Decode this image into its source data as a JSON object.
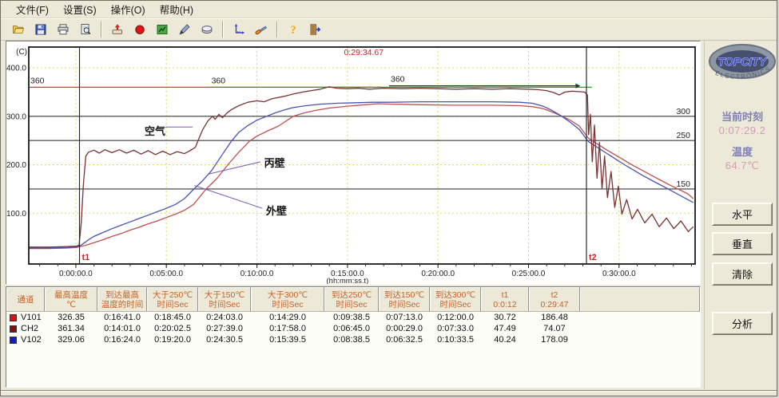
{
  "menu": {
    "items": [
      "文件(F)",
      "设置(S)",
      "操作(O)",
      "帮助(H)"
    ]
  },
  "toolbar": {
    "groups": [
      [
        "open-file-icon",
        "save-icon",
        "print-icon",
        "print-preview-icon"
      ],
      [
        "collect-data-icon",
        "record-icon",
        "chart-icon",
        "pen-icon",
        "eraser-icon"
      ],
      [
        "axis-icon",
        "tools-icon"
      ],
      [
        "help-icon",
        "exit-icon"
      ]
    ]
  },
  "chart_data": {
    "type": "line",
    "cursor_time_label": "0:29:34.67",
    "x_axis": {
      "sub_label": "(hh:mm:ss.t)",
      "tick_labels": [
        "0:00:00.0",
        "0:05:00.0",
        "0:10:00.0",
        "0:15:00.0",
        "0:20:00.0",
        "0:25:00.0",
        "0:30:00.0"
      ],
      "tick_minutes": [
        0,
        5,
        10,
        15,
        20,
        25,
        30
      ],
      "range_minutes": [
        -2.6,
        34.2
      ]
    },
    "y_axis": {
      "unit_label": "(C)",
      "tick_labels": [
        "400.0",
        "300.0",
        "200.0",
        "100.0"
      ],
      "tick_values": [
        400,
        300,
        200,
        100
      ],
      "range_c": [
        -5,
        443
      ]
    },
    "threshold_lines": [
      {
        "label": "150",
        "value": 150
      },
      {
        "label": "250",
        "value": 250
      },
      {
        "label": "300",
        "value": 300
      }
    ],
    "setpoint_lines": [
      {
        "label": "360",
        "value": 360,
        "color": "#e03838",
        "from_min": -2.6,
        "to_min": 16.9,
        "arrow": false
      },
      {
        "label": "360",
        "value": 360,
        "color": "#2f9e2f",
        "from_min": 7.4,
        "to_min": 28.5,
        "arrow": false
      },
      {
        "label": "360",
        "value": 363,
        "color": "#303030",
        "from_min": 17.3,
        "to_min": 27.6,
        "arrow": true
      }
    ],
    "markers": [
      {
        "label": "t1",
        "time_min": 0.2,
        "time_text": "0:0:12"
      },
      {
        "label": "t2",
        "time_min": 28.2,
        "time_text": "0:29:47"
      }
    ],
    "annotations": [
      {
        "text": "空气",
        "t": 3.8,
        "temp": 262,
        "line": [
          [
            4.95,
            278
          ],
          [
            6.45,
            278
          ]
        ]
      },
      {
        "text": "丙壁",
        "t": 10.4,
        "temp": 196,
        "line": [
          [
            10.2,
            206
          ],
          [
            7.35,
            181
          ]
        ]
      },
      {
        "text": "外壁",
        "t": 10.5,
        "temp": 97,
        "line": [
          [
            10.3,
            110
          ],
          [
            6.55,
            157
          ]
        ]
      }
    ],
    "series": [
      {
        "name": "外壁",
        "channel": "V101",
        "color": "#c05050",
        "points": [
          [
            -2.6,
            27
          ],
          [
            -1.5,
            27
          ],
          [
            -0.5,
            28
          ],
          [
            0,
            29
          ],
          [
            0.5,
            33
          ],
          [
            1,
            39
          ],
          [
            1.5,
            45
          ],
          [
            2,
            52
          ],
          [
            2.5,
            58
          ],
          [
            3,
            65
          ],
          [
            3.5,
            71
          ],
          [
            4,
            78
          ],
          [
            4.5,
            84
          ],
          [
            5,
            91
          ],
          [
            5.5,
            98
          ],
          [
            6,
            106
          ],
          [
            6.5,
            118
          ],
          [
            7.2,
            150
          ],
          [
            7.8,
            172
          ],
          [
            8.4,
            200
          ],
          [
            9,
            226
          ],
          [
            9.6,
            249
          ],
          [
            10,
            259
          ],
          [
            10.6,
            270
          ],
          [
            11.2,
            280
          ],
          [
            12,
            300
          ],
          [
            12.6,
            307
          ],
          [
            13.2,
            312
          ],
          [
            14,
            317
          ],
          [
            15,
            321
          ],
          [
            16,
            324
          ],
          [
            16.7,
            326
          ],
          [
            17.5,
            325
          ],
          [
            19,
            324
          ],
          [
            21,
            323
          ],
          [
            23,
            323
          ],
          [
            24.5,
            322
          ],
          [
            25.2,
            320
          ],
          [
            25.8,
            316
          ],
          [
            26.3,
            309
          ],
          [
            26.8,
            301
          ],
          [
            27.3,
            292
          ],
          [
            27.8,
            280
          ],
          [
            28.3,
            255
          ],
          [
            28.8,
            243
          ],
          [
            29.3,
            231
          ],
          [
            29.8,
            220
          ],
          [
            30.3,
            209
          ],
          [
            30.8,
            198
          ],
          [
            31.3,
            188
          ],
          [
            31.8,
            178
          ],
          [
            32.3,
            168
          ],
          [
            32.8,
            158
          ],
          [
            33.3,
            149
          ],
          [
            33.8,
            140
          ],
          [
            34.1,
            130
          ]
        ]
      },
      {
        "name": "丙壁",
        "channel": "V102",
        "color": "#4a52b4",
        "points": [
          [
            -2.6,
            28
          ],
          [
            -1.5,
            28
          ],
          [
            -0.5,
            29
          ],
          [
            0,
            30
          ],
          [
            0.3,
            34
          ],
          [
            0.7,
            45
          ],
          [
            1,
            52
          ],
          [
            1.5,
            60
          ],
          [
            2,
            68
          ],
          [
            2.5,
            75
          ],
          [
            3,
            82
          ],
          [
            3.5,
            89
          ],
          [
            4,
            96
          ],
          [
            4.5,
            103
          ],
          [
            5,
            110
          ],
          [
            5.5,
            118
          ],
          [
            6,
            130
          ],
          [
            6.5,
            149
          ],
          [
            7,
            167
          ],
          [
            7.5,
            188
          ],
          [
            8,
            216
          ],
          [
            8.6,
            249
          ],
          [
            9,
            267
          ],
          [
            9.5,
            281
          ],
          [
            10,
            292
          ],
          [
            10.6,
            301
          ],
          [
            11,
            307
          ],
          [
            11.5,
            313
          ],
          [
            12,
            318
          ],
          [
            12.7,
            322
          ],
          [
            13.5,
            325
          ],
          [
            14.5,
            327
          ],
          [
            15.5,
            328
          ],
          [
            16.4,
            329
          ],
          [
            17.5,
            329
          ],
          [
            19,
            330
          ],
          [
            21,
            330
          ],
          [
            23,
            330
          ],
          [
            24.5,
            329
          ],
          [
            25.2,
            327
          ],
          [
            25.8,
            321
          ],
          [
            26.3,
            312
          ],
          [
            26.8,
            301
          ],
          [
            27.3,
            288
          ],
          [
            27.8,
            273
          ],
          [
            28.3,
            248
          ],
          [
            28.8,
            236
          ],
          [
            29.3,
            224
          ],
          [
            29.8,
            212
          ],
          [
            30.3,
            200
          ],
          [
            30.8,
            189
          ],
          [
            31.3,
            178
          ],
          [
            31.8,
            168
          ],
          [
            32.3,
            158
          ],
          [
            32.8,
            148
          ],
          [
            33.3,
            138
          ],
          [
            33.8,
            128
          ],
          [
            34.1,
            122
          ]
        ]
      },
      {
        "name": "空气",
        "channel": "CH2",
        "color": "#7a3232",
        "points": [
          [
            -2.6,
            30
          ],
          [
            -1.5,
            30
          ],
          [
            -0.5,
            31
          ],
          [
            0.05,
            32
          ],
          [
            0.18,
            34
          ],
          [
            0.3,
            80
          ],
          [
            0.42,
            160
          ],
          [
            0.55,
            218
          ],
          [
            0.7,
            226
          ],
          [
            1,
            230
          ],
          [
            1.3,
            224
          ],
          [
            1.6,
            231
          ],
          [
            2,
            225
          ],
          [
            2.4,
            231
          ],
          [
            2.8,
            224
          ],
          [
            3.2,
            230
          ],
          [
            3.6,
            222
          ],
          [
            4,
            229
          ],
          [
            4.4,
            221
          ],
          [
            4.8,
            228
          ],
          [
            5.2,
            221
          ],
          [
            5.6,
            227
          ],
          [
            6,
            223
          ],
          [
            6.3,
            229
          ],
          [
            6.6,
            236
          ],
          [
            6.75,
            250
          ],
          [
            7,
            272
          ],
          [
            7.3,
            291
          ],
          [
            7.55,
            300
          ],
          [
            7.7,
            294
          ],
          [
            7.9,
            304
          ],
          [
            8.1,
            297
          ],
          [
            8.35,
            307
          ],
          [
            8.6,
            314
          ],
          [
            9,
            322
          ],
          [
            9.5,
            329
          ],
          [
            10,
            332
          ],
          [
            10.4,
            330
          ],
          [
            10.8,
            336
          ],
          [
            11.2,
            339
          ],
          [
            11.6,
            342
          ],
          [
            12,
            346
          ],
          [
            12.5,
            350
          ],
          [
            13,
            353
          ],
          [
            13.5,
            356
          ],
          [
            14,
            361
          ],
          [
            14.4,
            358
          ],
          [
            15,
            357
          ],
          [
            15.6,
            358
          ],
          [
            16.2,
            356
          ],
          [
            17,
            358
          ],
          [
            18,
            357
          ],
          [
            19,
            358
          ],
          [
            20,
            357
          ],
          [
            21,
            356
          ],
          [
            22,
            357
          ],
          [
            23,
            356
          ],
          [
            24,
            357
          ],
          [
            25,
            356
          ],
          [
            25.5,
            355
          ],
          [
            26,
            353
          ],
          [
            26.4,
            349
          ],
          [
            26.7,
            344
          ],
          [
            27,
            350
          ],
          [
            27.4,
            352
          ],
          [
            27.8,
            351
          ],
          [
            28.1,
            350
          ],
          [
            28.25,
            344
          ],
          [
            28.32,
            262
          ],
          [
            28.42,
            304
          ],
          [
            28.52,
            206
          ],
          [
            28.64,
            282
          ],
          [
            28.78,
            172
          ],
          [
            28.92,
            246
          ],
          [
            29.06,
            150
          ],
          [
            29.2,
            218
          ],
          [
            29.36,
            132
          ],
          [
            29.56,
            186
          ],
          [
            29.76,
            112
          ],
          [
            29.96,
            156
          ],
          [
            30.16,
            98
          ],
          [
            30.42,
            128
          ],
          [
            30.72,
            88
          ],
          [
            31.02,
            108
          ],
          [
            31.42,
            80
          ],
          [
            31.82,
            98
          ],
          [
            32.22,
            72
          ],
          [
            32.62,
            90
          ],
          [
            33.02,
            68
          ],
          [
            33.42,
            84
          ],
          [
            33.82,
            62
          ],
          [
            34.1,
            72
          ]
        ]
      }
    ]
  },
  "table": {
    "headers": [
      {
        "line1": "通道",
        "line2": ""
      },
      {
        "line1": "最高温度",
        "line2": "℃"
      },
      {
        "line1": "到达最高",
        "line2": "温度的时间"
      },
      {
        "line1": "大于250℃",
        "line2": "时间Sec"
      },
      {
        "line1": "大于150℃",
        "line2": "时间Sec"
      },
      {
        "line1": "大于300℃",
        "line2": "时间Sec"
      },
      {
        "line1": "到达250℃",
        "line2": "时间Sec"
      },
      {
        "line1": "到达150℃",
        "line2": "时间Sec"
      },
      {
        "line1": "到达300℃",
        "line2": "时间Sec"
      },
      {
        "line1": "t1",
        "line2": "0:0:12"
      },
      {
        "line1": "t2",
        "line2": "0:29:47"
      },
      {
        "line1": "",
        "line2": ""
      }
    ],
    "rows": [
      {
        "channel": "V101",
        "color": "#e01010",
        "cells": [
          "326.35",
          "0:16:41.0",
          "0:18:45.0",
          "0:24:03.0",
          "0:14:29.0",
          "0:09:38.5",
          "0:07:13.0",
          "0:12:00.0",
          "30.72",
          "186.48"
        ]
      },
      {
        "channel": "CH2",
        "color": "#801010",
        "cells": [
          "361.34",
          "0:14:01.0",
          "0:20:02.5",
          "0:27:39.0",
          "0:17:58.0",
          "0:06:45.0",
          "0:00:29.0",
          "0:07:33.0",
          "47.49",
          "74.07"
        ]
      },
      {
        "channel": "V102",
        "color": "#1020c0",
        "cells": [
          "329.06",
          "0:16:24.0",
          "0:19:20.0",
          "0:24:30.5",
          "0:15:39.5",
          "0:08:38.5",
          "0:06:32.5",
          "0:10:33.5",
          "40.24",
          "178.09"
        ]
      }
    ]
  },
  "sidebar": {
    "logo": {
      "line1": "TOPCITY",
      "line2": "ELECTRONICS"
    },
    "readouts": [
      {
        "label": "当前时刻",
        "value": "0:07:29.2"
      },
      {
        "label": "温度",
        "value": "64.7℃"
      }
    ],
    "buttons": [
      "水平",
      "垂直",
      "清除",
      "分析"
    ]
  },
  "colors": {
    "header_text": "#c4622a",
    "readout_label": "#7f7fb8",
    "readout_value": "#d79ab4",
    "grid": "#d9d964",
    "plot_border": "#1a1a1a",
    "marker_label": "#cc2222",
    "annotation_line": "#7a5ab8",
    "cursor_label": "#cc2222"
  }
}
